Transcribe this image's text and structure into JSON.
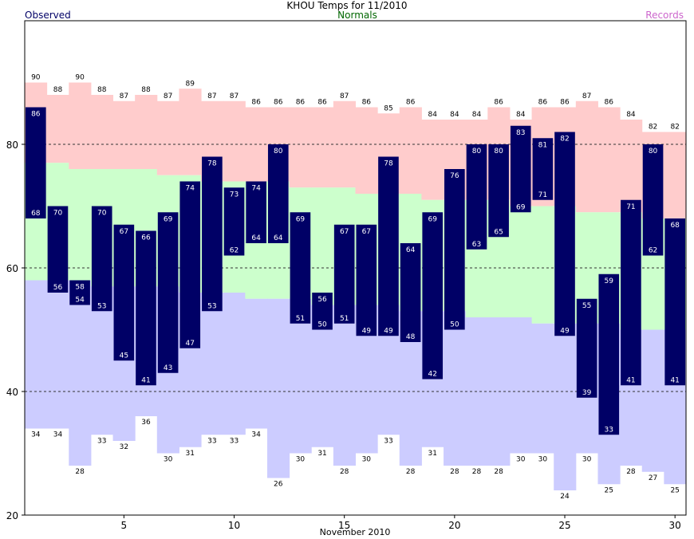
{
  "chart_data": {
    "type": "bar",
    "title": "KHOU Temps for 11/2010",
    "xlabel": "November 2010",
    "ylabel": "",
    "legend": {
      "observed": "Observed",
      "normals": "Normals",
      "records": "Records"
    },
    "colors": {
      "observed": "#000066",
      "normal_band": "#ccffcc",
      "record_high_band": "#ffcccc",
      "record_low_band": "#ccccff",
      "observed_title": "#000066",
      "normals_title": "#006600",
      "records_title": "#cc66cc"
    },
    "ylim": [
      20,
      100
    ],
    "xlim": [
      0.5,
      30.5
    ],
    "yticks": [
      20,
      40,
      60,
      80
    ],
    "xticks": [
      5,
      10,
      15,
      20,
      25,
      30
    ],
    "grid": "dashed at 40, 60, 80",
    "days": [
      1,
      2,
      3,
      4,
      5,
      6,
      7,
      8,
      9,
      10,
      11,
      12,
      13,
      14,
      15,
      16,
      17,
      18,
      19,
      20,
      21,
      22,
      23,
      24,
      25,
      26,
      27,
      28,
      29,
      30
    ],
    "observed_high": [
      86,
      70,
      58,
      70,
      67,
      66,
      69,
      74,
      78,
      73,
      74,
      80,
      69,
      56,
      67,
      67,
      78,
      64,
      69,
      76,
      80,
      80,
      83,
      81,
      82,
      55,
      59,
      71,
      80,
      68
    ],
    "observed_low": [
      68,
      56,
      54,
      53,
      45,
      41,
      43,
      47,
      53,
      62,
      64,
      64,
      51,
      50,
      51,
      49,
      49,
      48,
      42,
      50,
      63,
      65,
      69,
      71,
      49,
      39,
      33,
      41,
      62,
      41
    ],
    "normal_high": [
      77,
      77,
      76,
      76,
      76,
      76,
      75,
      75,
      74,
      74,
      74,
      74,
      73,
      73,
      73,
      72,
      72,
      72,
      71,
      71,
      71,
      71,
      70,
      70,
      70,
      69,
      69,
      69,
      68,
      68
    ],
    "normal_low": [
      58,
      58,
      58,
      57,
      57,
      57,
      57,
      56,
      56,
      56,
      55,
      55,
      55,
      54,
      54,
      54,
      54,
      53,
      53,
      53,
      52,
      52,
      52,
      51,
      51,
      51,
      51,
      50,
      50,
      50
    ],
    "record_high": [
      90,
      88,
      90,
      88,
      87,
      88,
      87,
      89,
      87,
      87,
      86,
      86,
      86,
      86,
      87,
      86,
      85,
      86,
      84,
      84,
      84,
      86,
      84,
      86,
      86,
      87,
      86,
      84,
      82,
      82
    ],
    "record_low": [
      34,
      34,
      28,
      33,
      32,
      36,
      30,
      31,
      33,
      33,
      34,
      26,
      30,
      31,
      28,
      30,
      33,
      28,
      31,
      28,
      28,
      28,
      30,
      30,
      24,
      30,
      25,
      28,
      27,
      25
    ]
  }
}
